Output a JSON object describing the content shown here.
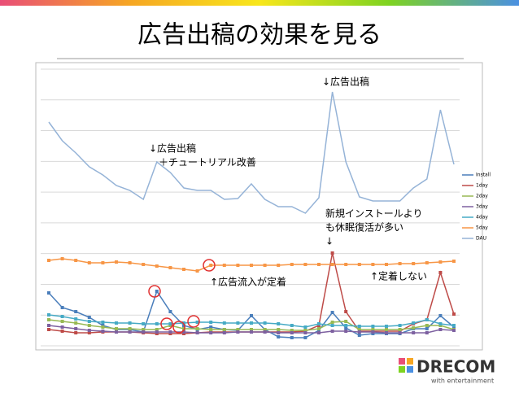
{
  "header": {
    "title": "広告出稿の効果を見る"
  },
  "logo": {
    "name": "DRECOM",
    "tagline": "with entertainment"
  },
  "chart_data": {
    "type": "line",
    "categories": [
      null,
      null,
      null,
      null,
      null,
      null,
      null,
      null,
      null,
      null,
      null,
      null,
      null,
      null,
      null,
      null,
      null,
      null,
      null,
      null,
      null,
      null,
      null,
      null,
      null,
      null,
      null,
      null,
      null,
      null,
      null
    ],
    "ylim": [
      0,
      340
    ],
    "grid": true,
    "legend": "right",
    "series": [
      {
        "name": "Install",
        "color": "#4a7ebb",
        "values": [
          65,
          47,
          42,
          35,
          25,
          20,
          20,
          17,
          67,
          42,
          25,
          20,
          23,
          20,
          19,
          37,
          20,
          11,
          10,
          10,
          19,
          41,
          22,
          13,
          15,
          15,
          15,
          21,
          21,
          37,
          23
        ]
      },
      {
        "name": "1day",
        "color": "#be4b48",
        "values": [
          20,
          18,
          16,
          16,
          17,
          17,
          17,
          16,
          15,
          15,
          15,
          16,
          17,
          17,
          17,
          17,
          17,
          17,
          17,
          18,
          25,
          114,
          42,
          18,
          18,
          18,
          18,
          27,
          32,
          90,
          39
        ]
      },
      {
        "name": "2day",
        "color": "#98b954",
        "values": [
          32,
          30,
          28,
          25,
          23,
          21,
          21,
          20,
          20,
          25,
          21,
          21,
          20,
          20,
          20,
          20,
          20,
          20,
          19,
          19,
          21,
          29,
          30,
          20,
          20,
          20,
          20,
          22,
          25,
          25,
          20
        ]
      },
      {
        "name": "3day",
        "color": "#7d60a0",
        "values": [
          25,
          23,
          21,
          19,
          18,
          17,
          17,
          17,
          17,
          17,
          17,
          16,
          16,
          16,
          17,
          17,
          17,
          16,
          16,
          16,
          16,
          18,
          18,
          17,
          17,
          16,
          16,
          16,
          16,
          20,
          19
        ]
      },
      {
        "name": "4day",
        "color": "#46aac5",
        "values": [
          38,
          36,
          33,
          30,
          29,
          28,
          28,
          27,
          27,
          27,
          28,
          29,
          29,
          28,
          28,
          28,
          28,
          27,
          25,
          23,
          27,
          25,
          25,
          24,
          24,
          24,
          25,
          28,
          32,
          27,
          25
        ]
      },
      {
        "name": "5day",
        "color": "#f79646",
        "values": [
          105,
          107,
          105,
          102,
          102,
          103,
          102,
          100,
          98,
          96,
          94,
          92,
          99,
          99,
          99,
          99,
          99,
          99,
          100,
          100,
          100,
          100,
          100,
          100,
          100,
          100,
          101,
          101,
          102,
          103,
          104
        ]
      },
      {
        "name": "DAU",
        "color": "#95b3d7",
        "values": [
          275,
          252,
          237,
          220,
          210,
          197,
          191,
          180,
          226,
          213,
          194,
          191,
          191,
          180,
          181,
          199,
          180,
          171,
          171,
          163,
          182,
          312,
          226,
          183,
          178,
          178,
          178,
          194,
          205,
          290,
          223
        ]
      }
    ],
    "annotations": [
      "↓広告出稿",
      "↓広告出稿",
      "＋チュートリアル改善",
      "新規インストールより",
      "も休眠復活が多い",
      "↓",
      "↑広告流入が定着",
      "↑定着しない"
    ]
  }
}
